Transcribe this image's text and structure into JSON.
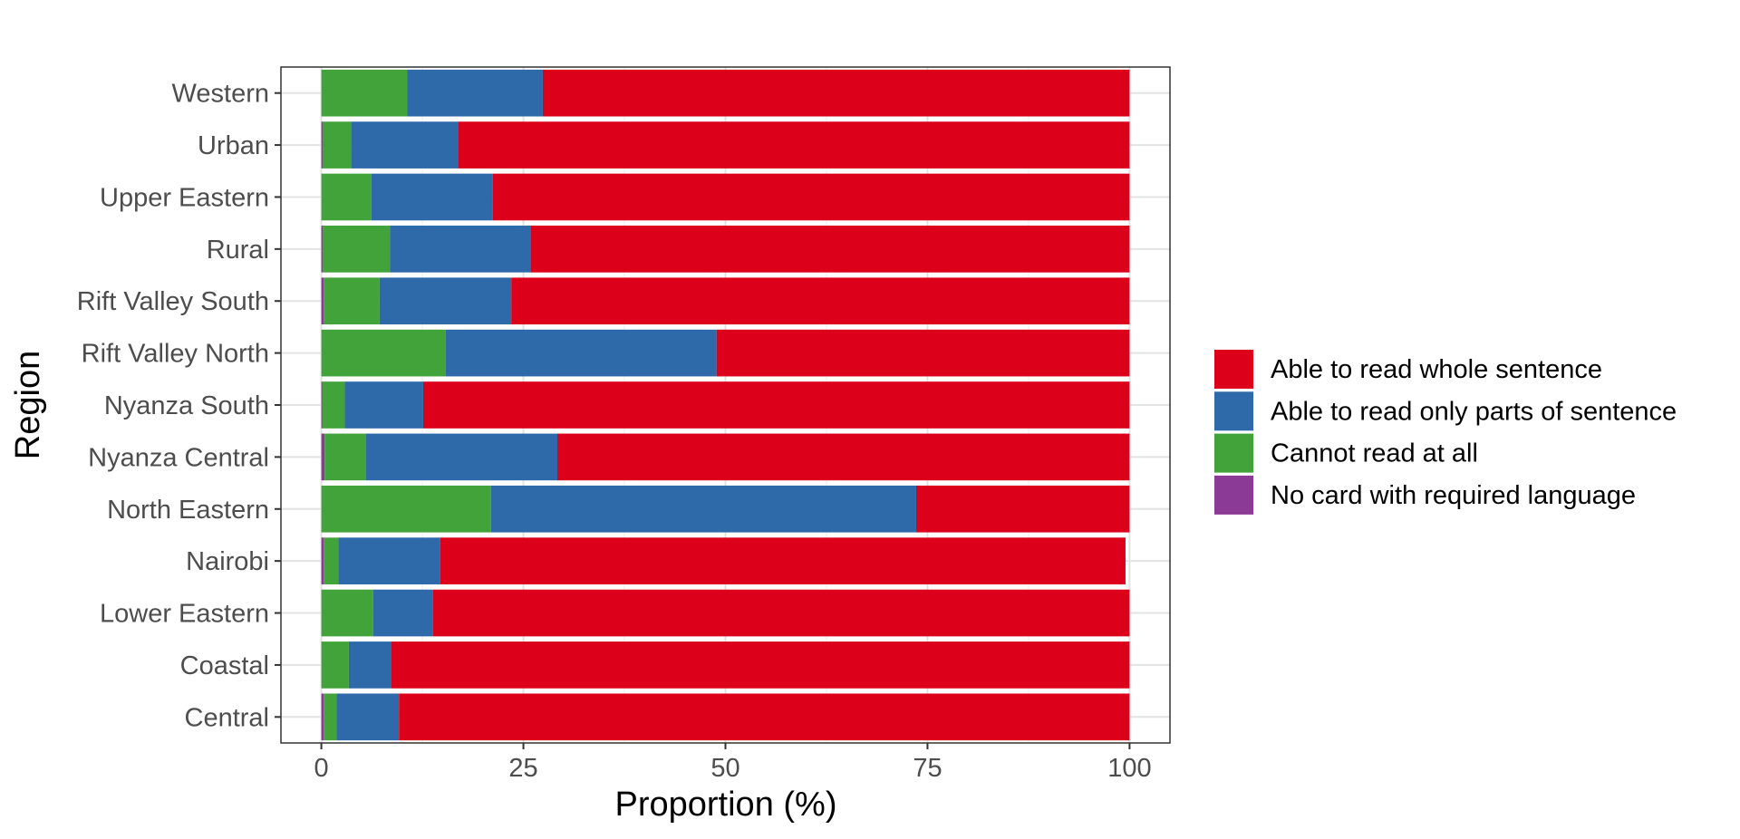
{
  "chart_data": {
    "type": "bar",
    "orientation": "horizontal",
    "stacked": true,
    "title": "",
    "xlabel": "Proportion (%)",
    "ylabel": "Region",
    "xlim": [
      -5,
      105
    ],
    "xticks": [
      0,
      25,
      50,
      75,
      100
    ],
    "grid": true,
    "legend_position": "right",
    "categories": [
      "Western",
      "Urban",
      "Upper Eastern",
      "Rural",
      "Rift Valley South",
      "Rift Valley North",
      "Nyanza South",
      "Nyanza Central",
      "North Eastern",
      "Nairobi",
      "Lower Eastern",
      "Coastal",
      "Central"
    ],
    "series": [
      {
        "name": "No card with required language",
        "color": "#8b3a96",
        "values": [
          0,
          0.2,
          0,
          0.2,
          0.3,
          0,
          0.1,
          0.4,
          0,
          0.3,
          0,
          0,
          0.3
        ]
      },
      {
        "name": "Cannot read at all",
        "color": "#41a33a",
        "values": [
          10.6,
          3.5,
          6.2,
          8.3,
          6.9,
          15.4,
          2.8,
          5.1,
          21.0,
          1.8,
          6.4,
          3.4,
          1.6
        ]
      },
      {
        "name": "Able to read only parts of sentence",
        "color": "#2e69aa",
        "values": [
          16.8,
          13.2,
          15.0,
          17.4,
          16.3,
          33.5,
          9.7,
          23.7,
          52.6,
          12.6,
          7.4,
          5.2,
          7.7
        ]
      },
      {
        "name": "Able to read whole sentence",
        "color": "#dc001a",
        "values": [
          72.6,
          83.1,
          78.8,
          74.1,
          76.5,
          51.1,
          87.4,
          70.8,
          26.4,
          84.8,
          86.2,
          91.4,
          90.4
        ]
      }
    ],
    "legend_order": [
      "Able to read whole sentence",
      "Able to read only parts of sentence",
      "Cannot read at all",
      "No card with required language"
    ]
  }
}
